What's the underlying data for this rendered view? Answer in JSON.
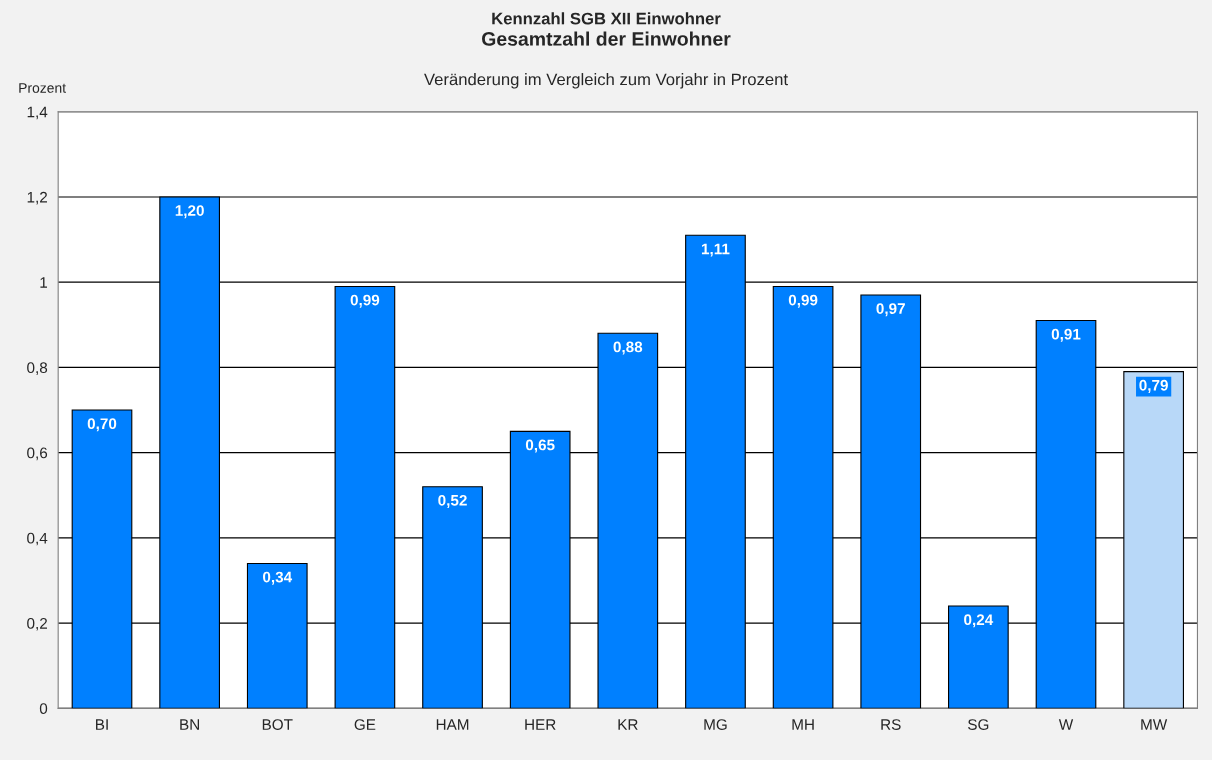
{
  "chart_data": {
    "type": "bar",
    "title": "Kennzahl SGB XII Einwohner",
    "subtitle": "Gesamtzahl der Einwohner",
    "annotations": [
      "Veränderung im Vergleich zum Vorjahr in Prozent"
    ],
    "ylabel": "Prozent",
    "categories": [
      "BI",
      "BN",
      "BOT",
      "GE",
      "HAM",
      "HER",
      "KR",
      "MG",
      "MH",
      "RS",
      "SG",
      "W",
      "MW"
    ],
    "values": [
      0.7,
      1.2,
      0.34,
      0.99,
      0.52,
      0.65,
      0.88,
      1.11,
      0.99,
      0.97,
      0.24,
      0.91,
      0.79
    ],
    "value_labels": [
      "0,70",
      "1,20",
      "0,34",
      "0,99",
      "0,52",
      "0,65",
      "0,88",
      "1,11",
      "0,99",
      "0,97",
      "0,24",
      "0,91",
      "0,79"
    ],
    "colors": [
      "#0080ff",
      "#0080ff",
      "#0080ff",
      "#0080ff",
      "#0080ff",
      "#0080ff",
      "#0080ff",
      "#0080ff",
      "#0080ff",
      "#0080ff",
      "#0080ff",
      "#0080ff",
      "#b8d8f8"
    ],
    "ylim": [
      0,
      1.4
    ],
    "yticks": [
      0,
      {
        "value": 0.2,
        "label": "0,2"
      },
      {
        "value": 0.4,
        "label": "0,4"
      },
      {
        "value": 0.6,
        "label": "0,6"
      },
      {
        "value": 0.8,
        "label": "0,8"
      },
      1,
      {
        "value": 1.2,
        "label": "1,2"
      },
      {
        "value": 1.4,
        "label": "1,4"
      }
    ],
    "grid": "y",
    "legend": false
  }
}
